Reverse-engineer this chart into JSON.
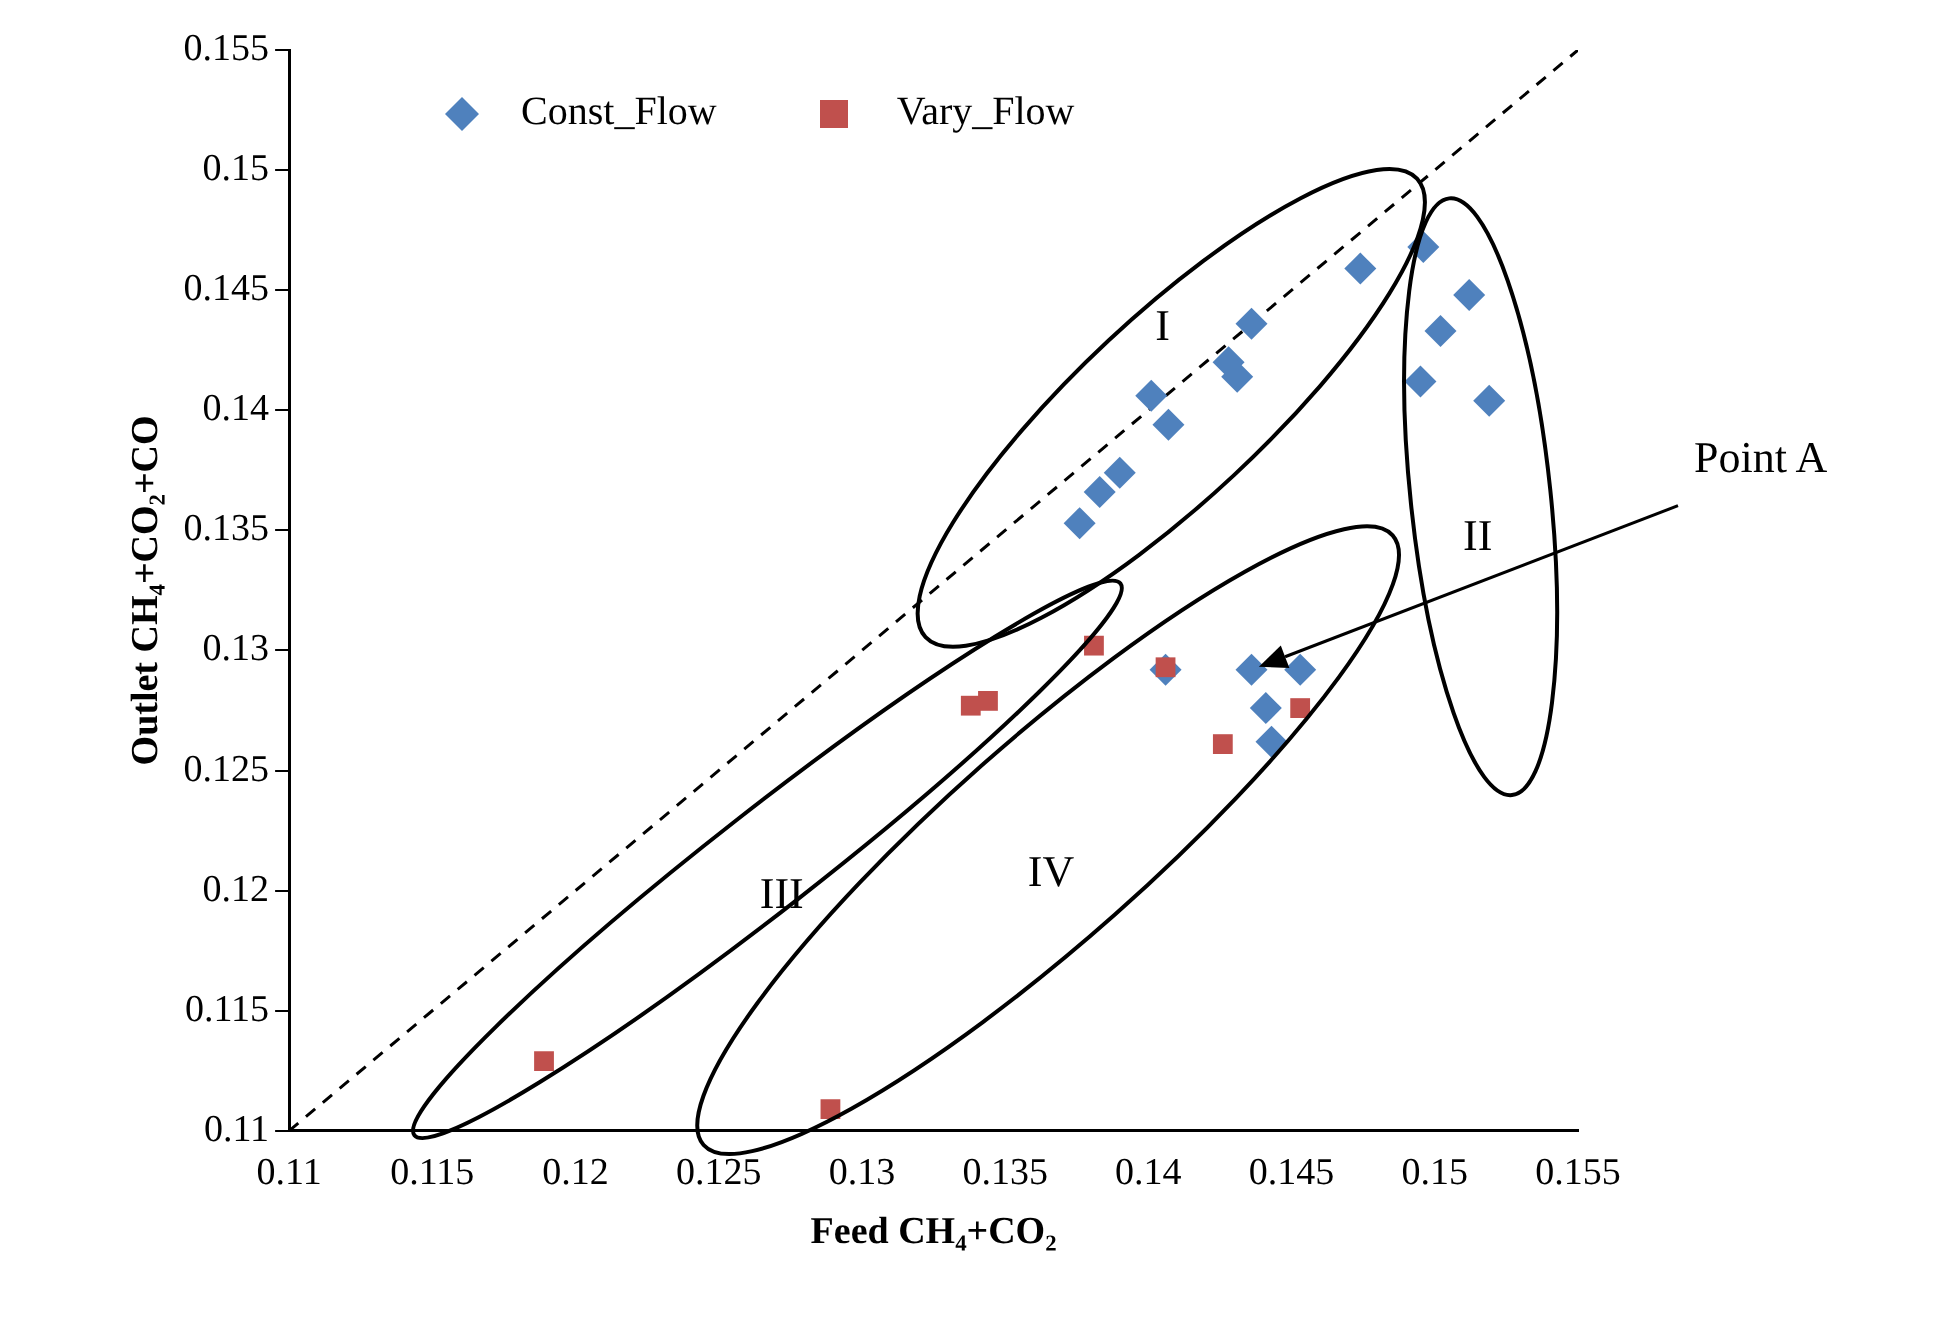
{
  "chart_data": {
    "type": "scatter",
    "xlabel": "Feed CH₄+CO₂",
    "ylabel": "Outlet CH₄+CO₂+CO",
    "xlim": [
      0.11,
      0.155
    ],
    "xticks": [
      0.11,
      0.115,
      0.12,
      0.125,
      0.13,
      0.135,
      0.14,
      0.145,
      0.15,
      0.155
    ],
    "ylim": [
      0.11,
      0.155
    ],
    "yticks": [
      0.11,
      0.115,
      0.12,
      0.125,
      0.13,
      0.135,
      0.14,
      0.145,
      0.15,
      0.155
    ],
    "grid": false,
    "legend": "top",
    "series": [
      {
        "name": "Const_Flow",
        "marker": "diamond",
        "color": "#4f81bd",
        "x": [
          0.1376,
          0.1383,
          0.139,
          0.1401,
          0.1407,
          0.1428,
          0.1431,
          0.1436,
          0.1474,
          0.1496,
          0.1512,
          0.1502,
          0.1495,
          0.1519,
          0.1436,
          0.1453,
          0.1441,
          0.1443,
          0.1406
        ],
        "values": [
          0.1353,
          0.1366,
          0.1374,
          0.1406,
          0.1394,
          0.142,
          0.1414,
          0.1436,
          0.1459,
          0.1468,
          0.1448,
          0.1433,
          0.1412,
          0.1404,
          0.1292,
          0.1292,
          0.1276,
          0.1262,
          0.1292
        ]
      },
      {
        "name": "Vary_Flow",
        "marker": "square",
        "color": "#c0504d",
        "x": [
          0.1189,
          0.1289,
          0.1338,
          0.1344,
          0.1381,
          0.1406,
          0.1426,
          0.1453
        ],
        "values": [
          0.1129,
          0.1109,
          0.1277,
          0.1279,
          0.1302,
          0.1293,
          0.1261,
          0.1276
        ]
      },
      {
        "type": "line",
        "marker": "none",
        "line_style": "dashed",
        "color": "#000000",
        "x": [
          0.11,
          0.155
        ],
        "values": [
          0.11,
          0.155
        ]
      }
    ],
    "annotations": [
      "I",
      "II",
      "III",
      "IV",
      "Point A"
    ]
  }
}
